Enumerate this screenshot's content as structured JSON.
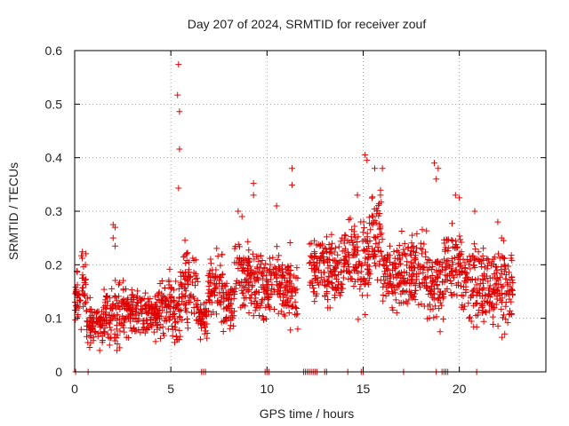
{
  "chart_data": {
    "type": "scatter",
    "title": "Day 207 of 2024, SRMTID for receiver zouf",
    "xlabel": "GPS time / hours",
    "ylabel": "SRMTID / TECUs",
    "xlim": [
      0,
      24.5
    ],
    "ylim": [
      0,
      0.6
    ],
    "xticks": [
      "0",
      "5",
      "10",
      "15",
      "20"
    ],
    "yticks": [
      "0",
      "0.1",
      "0.2",
      "0.3",
      "0.4",
      "0.5",
      "0.6"
    ],
    "grid": true,
    "marker": "+",
    "color": "#e00000",
    "series": [
      {
        "name": "SRMTID",
        "segments": [
          {
            "x0": 0.0,
            "x1": 0.35,
            "base": 0.14,
            "spread": 0.04
          },
          {
            "x0": 0.35,
            "x1": 0.6,
            "base": 0.17,
            "spread": 0.04
          },
          {
            "x0": 0.6,
            "x1": 1.5,
            "base": 0.09,
            "spread": 0.03
          },
          {
            "x0": 1.5,
            "x1": 2.3,
            "base": 0.11,
            "spread": 0.04
          },
          {
            "x0": 2.3,
            "x1": 3.3,
            "base": 0.12,
            "spread": 0.04
          },
          {
            "x0": 3.3,
            "x1": 4.5,
            "base": 0.11,
            "spread": 0.03
          },
          {
            "x0": 4.5,
            "x1": 5.2,
            "base": 0.12,
            "spread": 0.04
          },
          {
            "x0": 5.2,
            "x1": 5.5,
            "base": 0.1,
            "spread": 0.04
          },
          {
            "x0": 5.5,
            "x1": 6.4,
            "base": 0.16,
            "spread": 0.05
          },
          {
            "x0": 6.4,
            "x1": 6.9,
            "base": 0.1,
            "spread": 0.03
          },
          {
            "x0": 6.9,
            "x1": 7.7,
            "base": 0.16,
            "spread": 0.04
          },
          {
            "x0": 7.7,
            "x1": 8.3,
            "base": 0.13,
            "spread": 0.04
          },
          {
            "x0": 8.3,
            "x1": 9.2,
            "base": 0.18,
            "spread": 0.05
          },
          {
            "x0": 9.2,
            "x1": 10.0,
            "base": 0.16,
            "spread": 0.05
          },
          {
            "x0": 10.0,
            "x1": 10.8,
            "base": 0.17,
            "spread": 0.04
          },
          {
            "x0": 10.8,
            "x1": 11.6,
            "base": 0.16,
            "spread": 0.05
          },
          {
            "x0": 11.6,
            "x1": 12.2,
            "base": 0.0,
            "spread": 0.0
          },
          {
            "x0": 12.2,
            "x1": 13.0,
            "base": 0.19,
            "spread": 0.04
          },
          {
            "x0": 13.0,
            "x1": 14.0,
            "base": 0.19,
            "spread": 0.05
          },
          {
            "x0": 14.0,
            "x1": 14.7,
            "base": 0.22,
            "spread": 0.05
          },
          {
            "x0": 14.7,
            "x1": 15.3,
            "base": 0.2,
            "spread": 0.06
          },
          {
            "x0": 15.3,
            "x1": 16.0,
            "base": 0.25,
            "spread": 0.06
          },
          {
            "x0": 16.0,
            "x1": 17.0,
            "base": 0.18,
            "spread": 0.04
          },
          {
            "x0": 17.0,
            "x1": 18.3,
            "base": 0.19,
            "spread": 0.05
          },
          {
            "x0": 18.3,
            "x1": 19.2,
            "base": 0.16,
            "spread": 0.05
          },
          {
            "x0": 19.2,
            "x1": 20.2,
            "base": 0.2,
            "spread": 0.05
          },
          {
            "x0": 20.2,
            "x1": 21.3,
            "base": 0.16,
            "spread": 0.05
          },
          {
            "x0": 21.3,
            "x1": 22.8,
            "base": 0.16,
            "spread": 0.05
          }
        ],
        "extra_points": [
          [
            5.4,
            0.574
          ],
          [
            5.35,
            0.517
          ],
          [
            5.45,
            0.486
          ],
          [
            5.45,
            0.416
          ],
          [
            5.4,
            0.343
          ],
          [
            11.3,
            0.38
          ],
          [
            11.3,
            0.349
          ],
          [
            9.3,
            0.352
          ],
          [
            9.3,
            0.33
          ],
          [
            15.1,
            0.405
          ],
          [
            15.2,
            0.395
          ],
          [
            15.6,
            0.38
          ],
          [
            18.7,
            0.39
          ],
          [
            18.9,
            0.38
          ],
          [
            18.8,
            0.36
          ],
          [
            2.0,
            0.275
          ],
          [
            2.1,
            0.27
          ],
          [
            2.0,
            0.25
          ],
          [
            2.1,
            0.235
          ],
          [
            2.1,
            0.1
          ],
          [
            1.3,
            0.04
          ],
          [
            2.2,
            0.04
          ],
          [
            5.2,
            0.055
          ],
          [
            19.0,
            0.075
          ],
          [
            11.6,
            0.08
          ],
          [
            14.7,
            0.33
          ],
          [
            15.9,
            0.33
          ],
          [
            16.0,
            0.38
          ],
          [
            20.0,
            0.325
          ],
          [
            19.8,
            0.33
          ],
          [
            20.8,
            0.3
          ],
          [
            22.0,
            0.28
          ],
          [
            22.2,
            0.25
          ],
          [
            22.3,
            0.245
          ],
          [
            10.5,
            0.31
          ],
          [
            8.5,
            0.3
          ],
          [
            8.7,
            0.29
          ]
        ],
        "zero_points": [
          0.05,
          0.7,
          6.6,
          6.7,
          6.8,
          9.9,
          10.0,
          10.1,
          11.9,
          12.0,
          12.1,
          12.2,
          12.3,
          12.4,
          12.5,
          12.6,
          13.0,
          13.1,
          14.2,
          14.9,
          15.0,
          17.1,
          18.8,
          19.1,
          19.2,
          19.3,
          19.4,
          20.9
        ]
      }
    ]
  }
}
